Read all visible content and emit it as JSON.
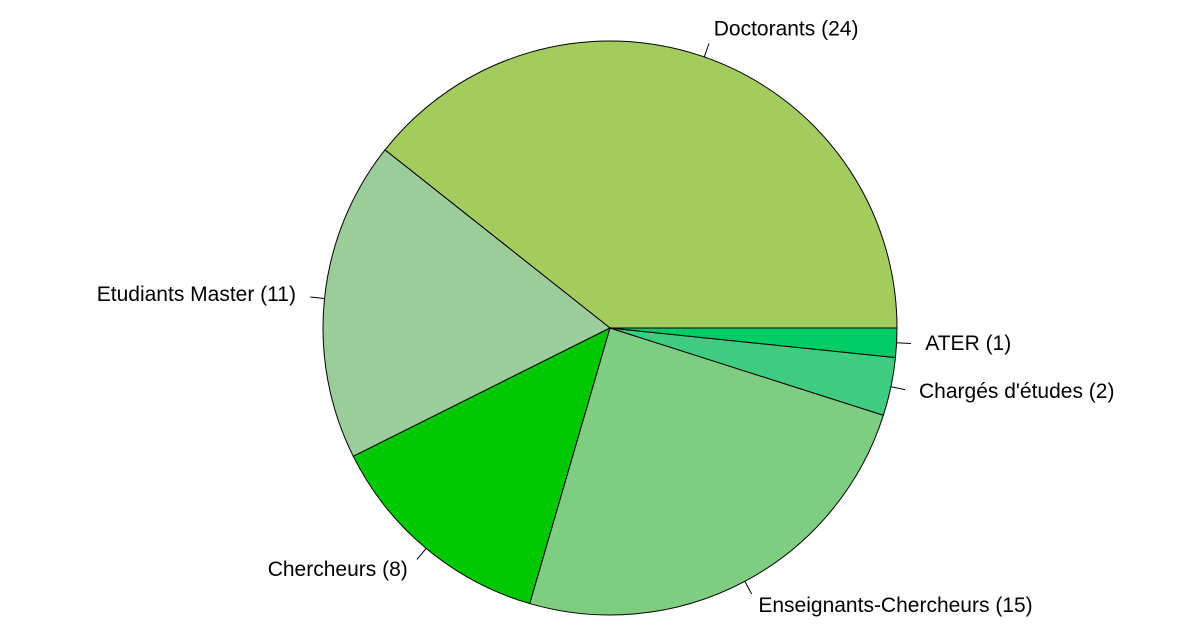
{
  "chart_data": {
    "type": "pie",
    "categories": [
      "Doctorants (24)",
      "Etudiants Master (11)",
      "Chercheurs (8)",
      "Enseignants-Chercheurs (15)",
      "Chargés d'études (2)",
      "ATER (1)"
    ],
    "values": [
      24,
      11,
      8,
      15,
      2,
      1
    ],
    "colors": [
      "#a3cc5f",
      "#9ccc9a",
      "#00c800",
      "#7ecd80",
      "#40cc80",
      "#00cc66"
    ]
  }
}
